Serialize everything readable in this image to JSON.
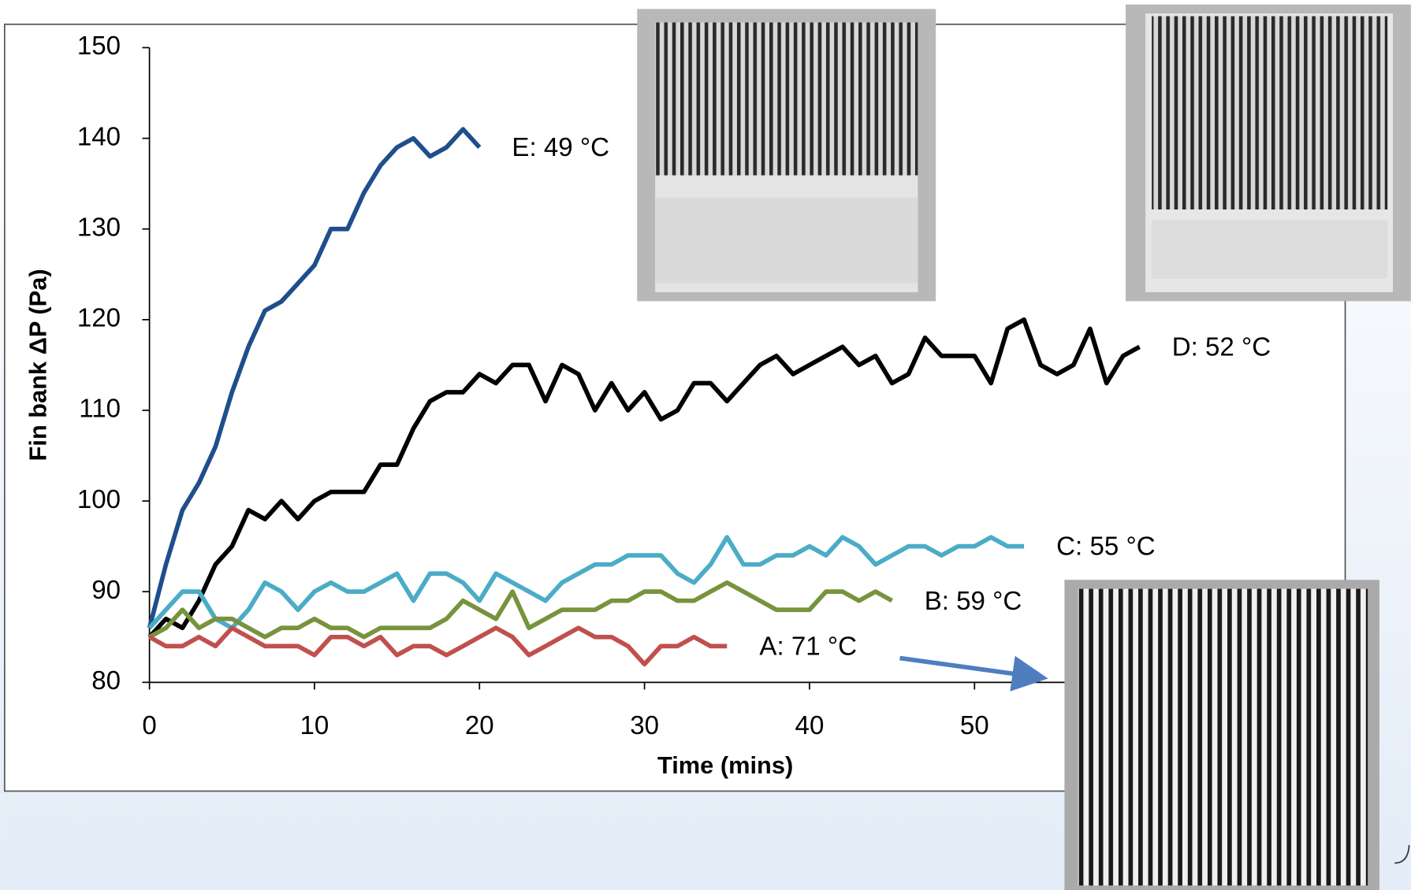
{
  "chart_data": {
    "type": "line",
    "x_label": "Time (mins)",
    "y_label": "Fin bank ΔP (Pa)",
    "x": [
      0,
      1,
      2,
      3,
      4,
      5,
      6,
      7,
      8,
      9,
      10,
      11,
      12,
      13,
      14,
      15,
      16,
      17,
      18,
      19,
      20,
      21,
      22,
      23,
      24,
      25,
      26,
      27,
      28,
      29,
      30,
      31,
      32,
      33,
      34,
      35,
      36,
      37,
      38,
      39,
      40,
      41,
      42,
      43,
      44,
      45,
      46,
      47,
      48,
      49,
      50,
      51,
      52,
      53,
      54,
      55,
      56,
      57,
      58,
      59,
      60
    ],
    "xlim": [
      0,
      70
    ],
    "xticks": [
      0,
      10,
      20,
      30,
      40,
      50
    ],
    "ylim": [
      80,
      150
    ],
    "yticks": [
      80,
      90,
      100,
      110,
      120,
      130,
      140,
      150
    ],
    "series": [
      {
        "name": "E: 49 °C",
        "color": "#1f4e8c",
        "values": [
          86,
          93,
          99,
          102,
          106,
          112,
          117,
          121,
          122,
          124,
          126,
          130,
          130,
          134,
          137,
          139,
          140,
          138,
          139,
          141,
          139,
          null,
          null,
          null,
          null,
          null,
          null,
          null,
          null,
          null,
          null,
          null,
          null,
          null,
          null,
          null,
          null,
          null,
          null,
          null,
          null,
          null,
          null,
          null,
          null,
          null,
          null,
          null,
          null,
          null,
          null,
          null,
          null,
          null,
          null,
          null,
          null,
          null,
          null,
          null,
          null
        ]
      },
      {
        "name": "D: 52 °C",
        "color": "#000000",
        "values": [
          85,
          87,
          86,
          89,
          93,
          95,
          99,
          98,
          100,
          98,
          100,
          101,
          101,
          101,
          104,
          104,
          108,
          111,
          112,
          112,
          114,
          113,
          115,
          115,
          111,
          115,
          114,
          110,
          113,
          110,
          112,
          109,
          110,
          113,
          113,
          111,
          113,
          115,
          116,
          114,
          115,
          116,
          117,
          115,
          116,
          113,
          114,
          118,
          116,
          116,
          116,
          113,
          119,
          120,
          115,
          114,
          115,
          119,
          113,
          116,
          117
        ]
      },
      {
        "name": "C: 55 °C",
        "color": "#4bacc6",
        "values": [
          86,
          88,
          90,
          90,
          87,
          86,
          88,
          91,
          90,
          88,
          90,
          91,
          90,
          90,
          91,
          92,
          89,
          92,
          92,
          91,
          89,
          92,
          91,
          90,
          89,
          91,
          92,
          93,
          93,
          94,
          94,
          94,
          92,
          91,
          93,
          96,
          93,
          93,
          94,
          94,
          95,
          94,
          96,
          95,
          93,
          94,
          95,
          95,
          94,
          95,
          95,
          96,
          95,
          95,
          null,
          null,
          null,
          null,
          null,
          null,
          null
        ]
      },
      {
        "name": "B: 59 °C",
        "color": "#77933c",
        "values": [
          85,
          86,
          88,
          86,
          87,
          87,
          86,
          85,
          86,
          86,
          87,
          86,
          86,
          85,
          86,
          86,
          86,
          86,
          87,
          89,
          88,
          87,
          90,
          86,
          87,
          88,
          88,
          88,
          89,
          89,
          90,
          90,
          89,
          89,
          90,
          91,
          90,
          89,
          88,
          88,
          88,
          90,
          90,
          89,
          90,
          89,
          null,
          null,
          null,
          null,
          null,
          null,
          null,
          null,
          null,
          null,
          null,
          null,
          null,
          null,
          null
        ]
      },
      {
        "name": "A: 71 °C",
        "color": "#c0504d",
        "values": [
          85,
          84,
          84,
          85,
          84,
          86,
          85,
          84,
          84,
          84,
          83,
          85,
          85,
          84,
          85,
          83,
          84,
          84,
          83,
          84,
          85,
          86,
          85,
          83,
          84,
          85,
          86,
          85,
          85,
          84,
          82,
          84,
          84,
          85,
          84,
          84,
          null,
          null,
          null,
          null,
          null,
          null,
          null,
          null,
          null,
          null,
          null,
          null,
          null,
          null,
          null,
          null,
          null,
          null,
          null,
          null,
          null,
          null,
          null,
          null,
          null
        ]
      }
    ]
  }
}
